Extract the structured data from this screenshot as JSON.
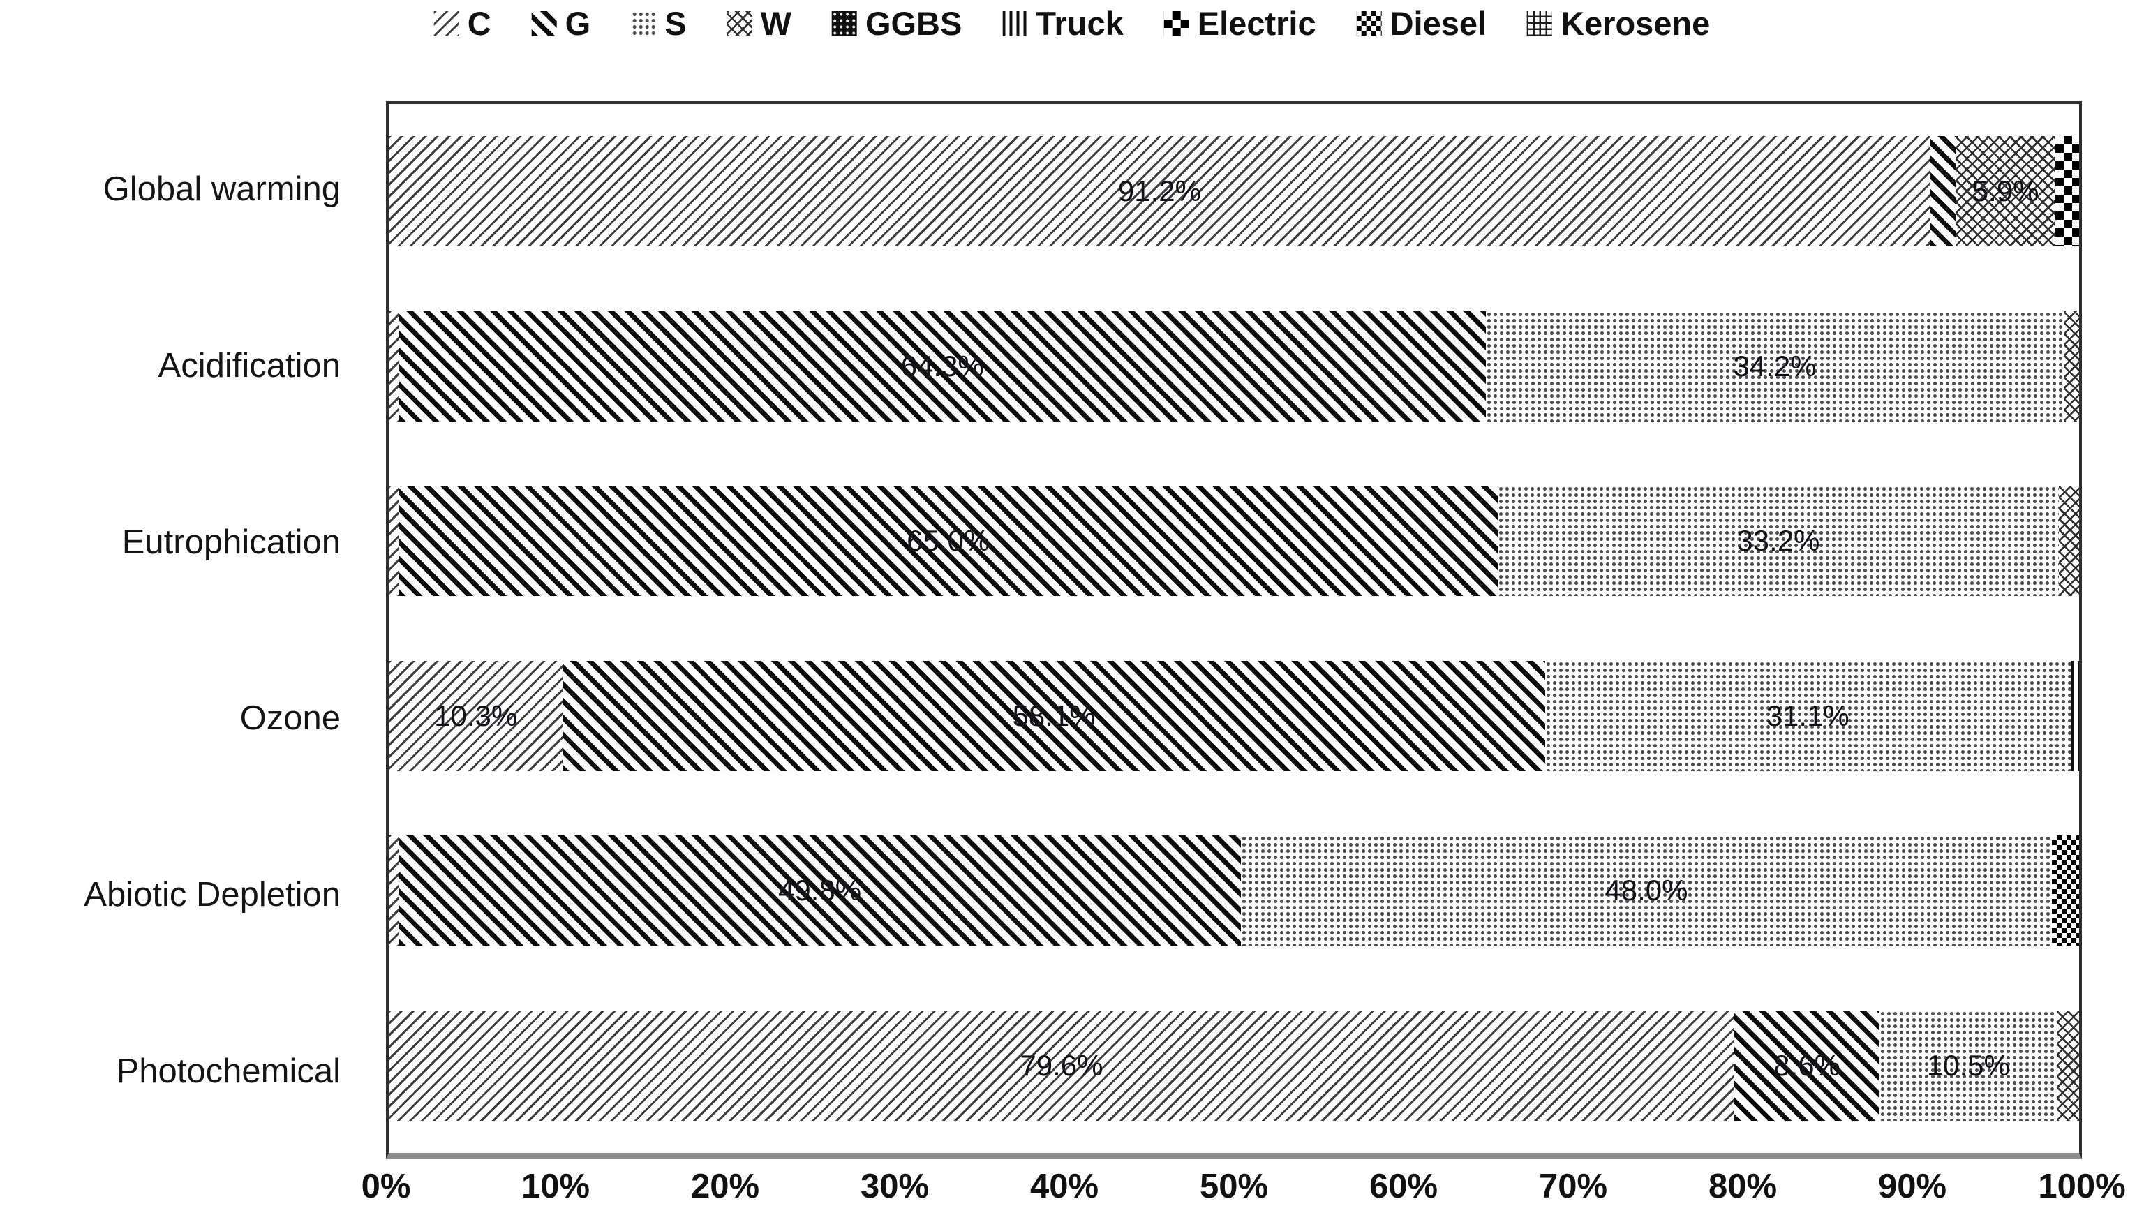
{
  "legend": {
    "items": [
      {
        "label": "C",
        "series": "C"
      },
      {
        "label": "G",
        "series": "G"
      },
      {
        "label": "S",
        "series": "S"
      },
      {
        "label": "W",
        "series": "W"
      },
      {
        "label": "GGBS",
        "series": "GGBS"
      },
      {
        "label": "Truck",
        "series": "Truck"
      },
      {
        "label": "Electric",
        "series": "Electric"
      },
      {
        "label": "Diesel",
        "series": "Diesel"
      },
      {
        "label": "Kerosene",
        "series": "Kerosene"
      }
    ]
  },
  "chart_data": {
    "type": "bar",
    "orientation": "horizontal",
    "stacked": true,
    "grid": false,
    "legend_position": "top",
    "x_axis": {
      "range": [
        0,
        100
      ],
      "ticks": [
        "0%",
        "10%",
        "20%",
        "30%",
        "40%",
        "50%",
        "60%",
        "70%",
        "80%",
        "90%",
        "100%"
      ]
    },
    "categories": [
      "Global warming",
      "Acidification",
      "Eutrophication",
      "Ozone",
      "Abiotic Depletion",
      "Photochemical"
    ],
    "rows": [
      {
        "category": "Global warming",
        "segments": [
          {
            "series": "C",
            "value": 91.2,
            "label": "91.2%"
          },
          {
            "series": "G",
            "value": 1.5,
            "label": ""
          },
          {
            "series": "W",
            "value": 5.9,
            "label": "5.9%"
          },
          {
            "series": "Electric",
            "value": 1.4,
            "label": ""
          }
        ]
      },
      {
        "category": "Acidification",
        "segments": [
          {
            "series": "C",
            "value": 0.6,
            "label": ""
          },
          {
            "series": "G",
            "value": 64.3,
            "label": "64.3%"
          },
          {
            "series": "S",
            "value": 34.2,
            "label": "34.2%"
          },
          {
            "series": "W",
            "value": 0.9,
            "label": ""
          }
        ]
      },
      {
        "category": "Eutrophication",
        "segments": [
          {
            "series": "C",
            "value": 0.6,
            "label": ""
          },
          {
            "series": "G",
            "value": 65.0,
            "label": "65.0%"
          },
          {
            "series": "S",
            "value": 33.2,
            "label": "33.2%"
          },
          {
            "series": "W",
            "value": 1.2,
            "label": ""
          }
        ]
      },
      {
        "category": "Ozone",
        "segments": [
          {
            "series": "C",
            "value": 10.3,
            "label": "10.3%"
          },
          {
            "series": "G",
            "value": 58.1,
            "label": "58.1%"
          },
          {
            "series": "S",
            "value": 31.1,
            "label": "31.1%"
          },
          {
            "series": "Truck",
            "value": 0.5,
            "label": ""
          }
        ]
      },
      {
        "category": "Abiotic Depletion",
        "segments": [
          {
            "series": "C",
            "value": 0.6,
            "label": ""
          },
          {
            "series": "G",
            "value": 49.8,
            "label": "49.8%"
          },
          {
            "series": "S",
            "value": 48.0,
            "label": "48.0%"
          },
          {
            "series": "Diesel",
            "value": 1.6,
            "label": ""
          }
        ]
      },
      {
        "category": "Photochemical",
        "segments": [
          {
            "series": "C",
            "value": 79.6,
            "label": "79.6%"
          },
          {
            "series": "G",
            "value": 8.6,
            "label": "8.6%"
          },
          {
            "series": "S",
            "value": 10.5,
            "label": "10.5%"
          },
          {
            "series": "W",
            "value": 1.3,
            "label": ""
          }
        ]
      }
    ]
  }
}
